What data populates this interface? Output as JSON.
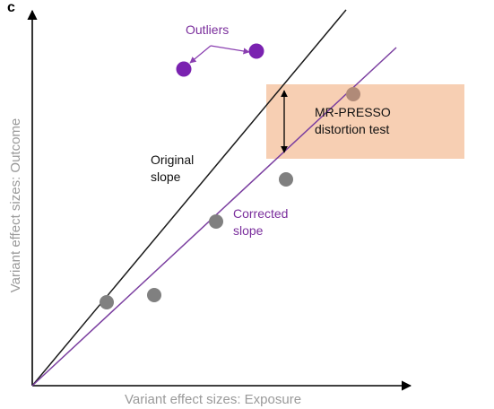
{
  "panel_label": "c",
  "axes": {
    "x_label": "Variant effect sizes: Exposure",
    "y_label": "Variant effect sizes: Outcome"
  },
  "annotations": {
    "outliers": "Outliers",
    "original_slope": [
      "Original",
      "slope"
    ],
    "corrected_slope": [
      "Corrected",
      "slope"
    ],
    "distortion_test": [
      "MR-PRESSO",
      "distortion test"
    ]
  },
  "colors": {
    "original_line": "#1a1a1a",
    "corrected_line": "#7b3fa0",
    "outlier_points": "#7a22b0",
    "variant_points": "#808080",
    "distortion_box": "#f7cfb3",
    "axis_title_text": "#9a9a9a"
  }
}
